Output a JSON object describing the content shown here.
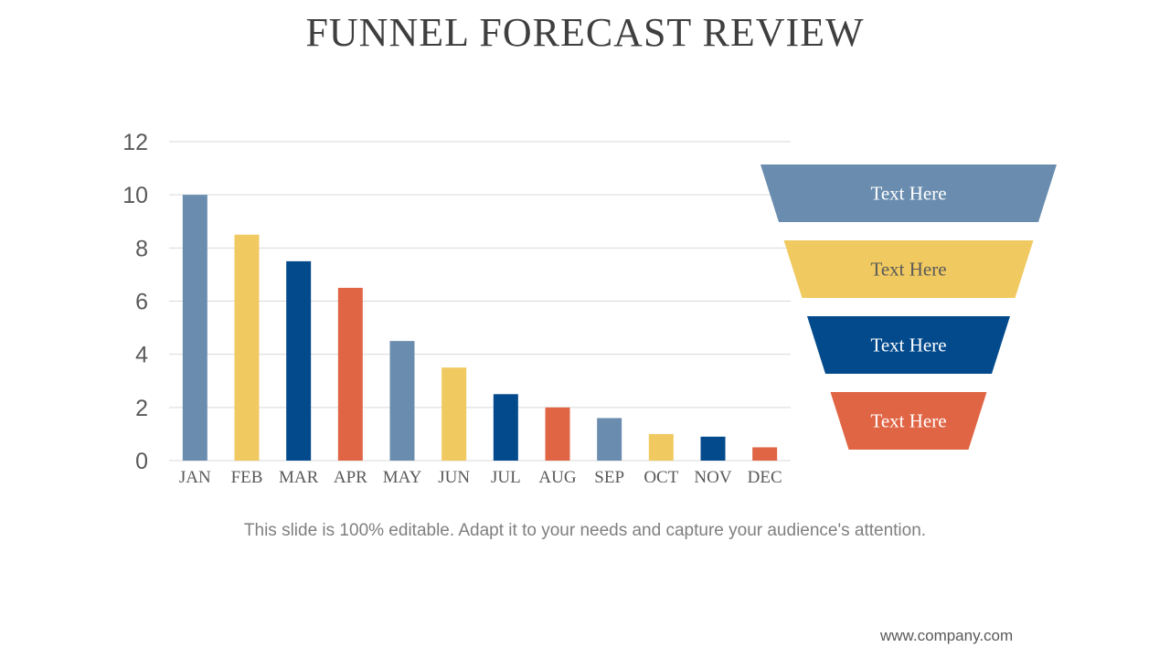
{
  "slide": {
    "title": "FUNNEL FORECAST REVIEW",
    "caption": "This slide is 100% editable. Adapt it to your needs and capture your audience's attention.",
    "footer": "www.company.com"
  },
  "colors": {
    "blue_gray": "#6a8daf",
    "yellow": "#f0c960",
    "navy": "#034a8c",
    "orange": "#e06545",
    "gridline": "#d9d9d9",
    "axis_text": "#595959"
  },
  "chart_data": {
    "type": "bar",
    "title": "",
    "xlabel": "",
    "ylabel": "",
    "categories": [
      "JAN",
      "FEB",
      "MAR",
      "APR",
      "MAY",
      "JUN",
      "JUL",
      "AUG",
      "SEP",
      "OCT",
      "NOV",
      "DEC"
    ],
    "values": [
      10,
      8.5,
      7.5,
      6.5,
      4.5,
      3.5,
      2.5,
      2,
      1.6,
      1,
      0.9,
      0.5
    ],
    "bar_colors": [
      "#6a8daf",
      "#f0c960",
      "#034a8c",
      "#e06545",
      "#6a8daf",
      "#f0c960",
      "#034a8c",
      "#e06545",
      "#6a8daf",
      "#f0c960",
      "#034a8c",
      "#e06545"
    ],
    "ylim": [
      0,
      12
    ],
    "yticks": [
      0,
      2,
      4,
      6,
      8,
      10,
      12
    ],
    "grid": true,
    "legend": "none"
  },
  "funnel": {
    "stages": [
      {
        "label": "Text Here",
        "color": "#6a8daf",
        "text_color": "#ffffff"
      },
      {
        "label": "Text Here",
        "color": "#f0c960",
        "text_color": "#595959"
      },
      {
        "label": "Text Here",
        "color": "#034a8c",
        "text_color": "#ffffff"
      },
      {
        "label": "Text Here",
        "color": "#e06545",
        "text_color": "#ffffff"
      }
    ]
  }
}
